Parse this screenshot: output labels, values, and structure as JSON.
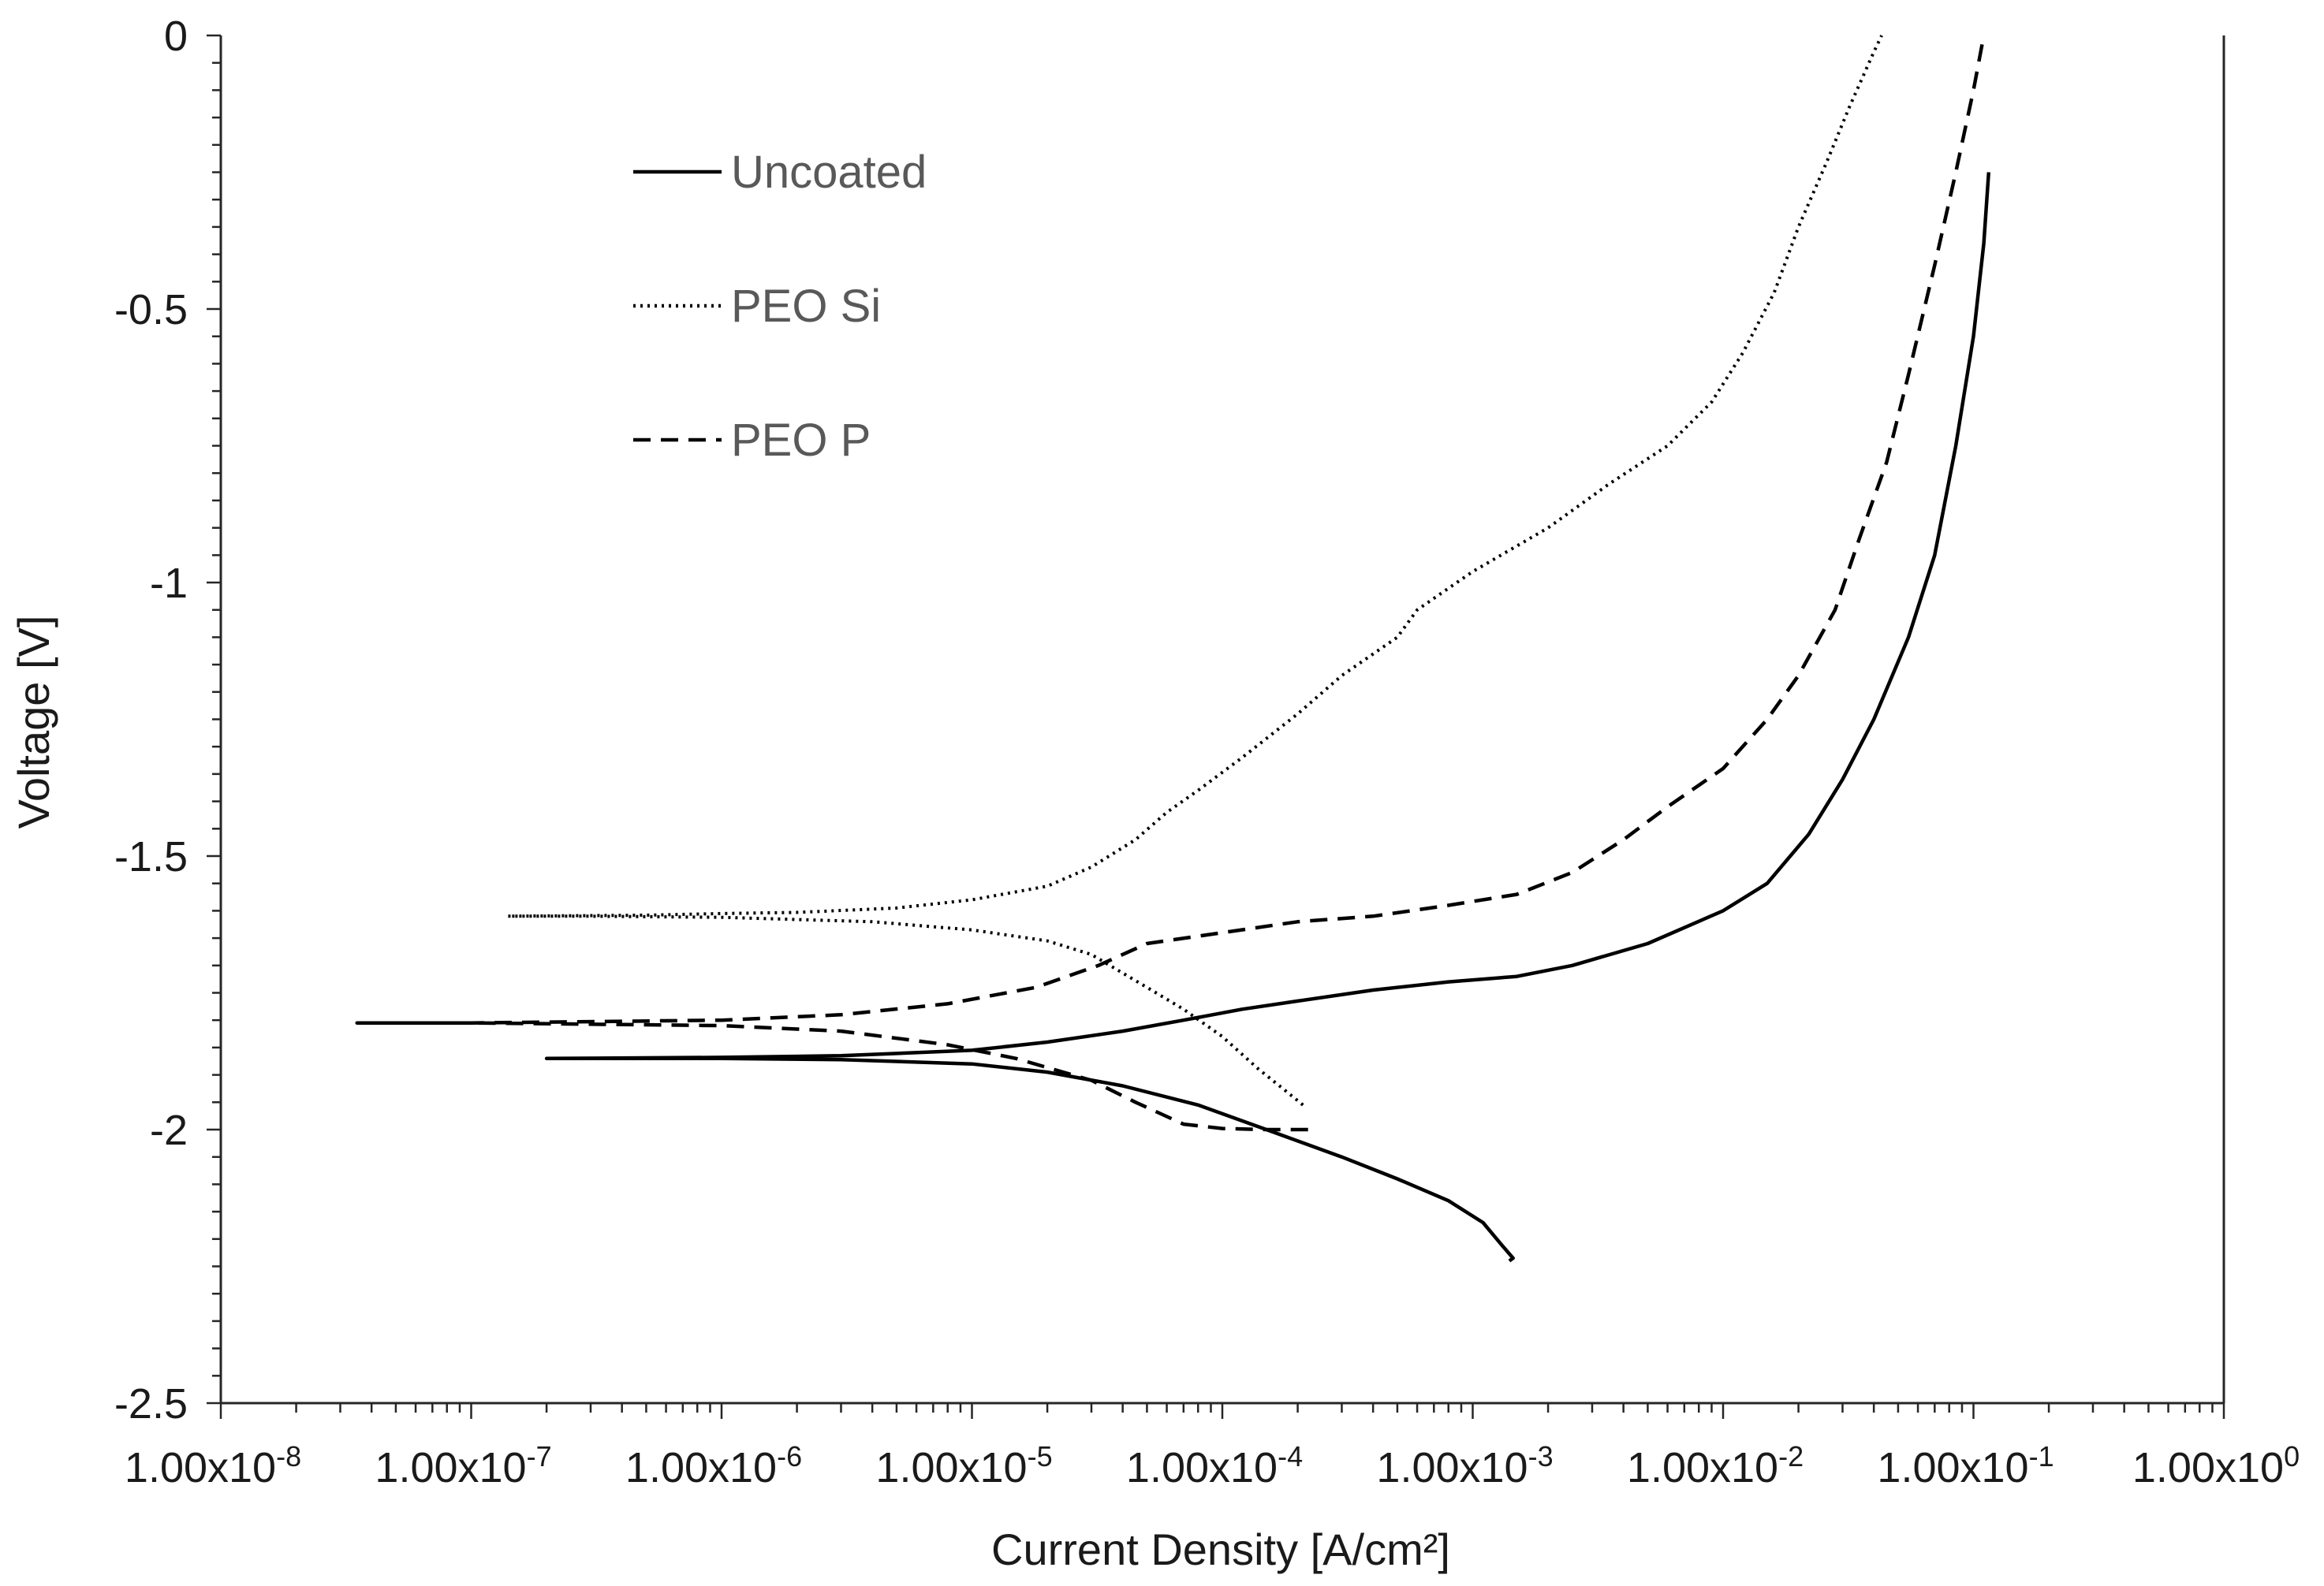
{
  "chart_data": {
    "type": "line",
    "title": "",
    "xlabel": "Current Density [A/cm²]",
    "ylabel": "Voltage [V]",
    "xscale": "log",
    "xlim": [
      1e-08,
      1
    ],
    "ylim": [
      -2.5,
      0
    ],
    "grid": false,
    "legend_position": "top-left",
    "x_ticks": [
      {
        "value": 1e-08,
        "mantissa": "1.00x10",
        "exp": "-8"
      },
      {
        "value": 1e-07,
        "mantissa": "1.00x10",
        "exp": "-7"
      },
      {
        "value": 1e-06,
        "mantissa": "1.00x10",
        "exp": "-6"
      },
      {
        "value": 1e-05,
        "mantissa": "1.00x10",
        "exp": "-5"
      },
      {
        "value": 0.0001,
        "mantissa": "1.00x10",
        "exp": "-4"
      },
      {
        "value": 0.001,
        "mantissa": "1.00x10",
        "exp": "-3"
      },
      {
        "value": 0.01,
        "mantissa": "1.00x10",
        "exp": "-2"
      },
      {
        "value": 0.1,
        "mantissa": "1.00x10",
        "exp": "-1"
      },
      {
        "value": 1,
        "mantissa": "1.00x10",
        "exp": "0"
      }
    ],
    "y_ticks": [
      {
        "value": 0,
        "label": "0"
      },
      {
        "value": -0.5,
        "label": "-0.5"
      },
      {
        "value": -1,
        "label": "-1"
      },
      {
        "value": -1.5,
        "label": "-1.5"
      },
      {
        "value": -2,
        "label": "-2"
      },
      {
        "value": -2.5,
        "label": "-2.5"
      }
    ],
    "series": [
      {
        "name": "Uncoated",
        "style": "solid",
        "color": "#000000",
        "points": [
          [
            0.0014,
            -2.24
          ],
          [
            0.00145,
            -2.235
          ],
          [
            0.0013,
            -2.21
          ],
          [
            0.0011,
            -2.17
          ],
          [
            0.0008,
            -2.13
          ],
          [
            0.0005,
            -2.09
          ],
          [
            0.0003,
            -2.05
          ],
          [
            0.00015,
            -2.0
          ],
          [
            8e-05,
            -1.955
          ],
          [
            4e-05,
            -1.92
          ],
          [
            2e-05,
            -1.895
          ],
          [
            1e-05,
            -1.88
          ],
          [
            3e-06,
            -1.872
          ],
          [
            1e-06,
            -1.87
          ],
          [
            3e-07,
            -1.87
          ],
          [
            2e-07,
            -1.87
          ],
          [
            1e-06,
            -1.868
          ],
          [
            3e-06,
            -1.865
          ],
          [
            1e-05,
            -1.855
          ],
          [
            2e-05,
            -1.84
          ],
          [
            4e-05,
            -1.82
          ],
          [
            7e-05,
            -1.8
          ],
          [
            0.00012,
            -1.78
          ],
          [
            0.0002,
            -1.765
          ],
          [
            0.0004,
            -1.745
          ],
          [
            0.0008,
            -1.73
          ],
          [
            0.0015,
            -1.72
          ],
          [
            0.0025,
            -1.7
          ],
          [
            0.005,
            -1.66
          ],
          [
            0.01,
            -1.6
          ],
          [
            0.015,
            -1.55
          ],
          [
            0.022,
            -1.46
          ],
          [
            0.03,
            -1.36
          ],
          [
            0.04,
            -1.25
          ],
          [
            0.055,
            -1.1
          ],
          [
            0.07,
            -0.95
          ],
          [
            0.085,
            -0.75
          ],
          [
            0.1,
            -0.55
          ],
          [
            0.11,
            -0.38
          ],
          [
            0.115,
            -0.25
          ]
        ]
      },
      {
        "name": "PEO Si",
        "style": "dotted",
        "color": "#000000",
        "points": [
          [
            0.00021,
            -1.955
          ],
          [
            0.00018,
            -1.93
          ],
          [
            0.00014,
            -1.89
          ],
          [
            0.0001,
            -1.83
          ],
          [
            7e-05,
            -1.78
          ],
          [
            5e-05,
            -1.74
          ],
          [
            3e-05,
            -1.68
          ],
          [
            2e-05,
            -1.655
          ],
          [
            1e-05,
            -1.635
          ],
          [
            4e-06,
            -1.62
          ],
          [
            1e-06,
            -1.612
          ],
          [
            3e-07,
            -1.61
          ],
          [
            1.4e-07,
            -1.61
          ],
          [
            5e-07,
            -1.608
          ],
          [
            1e-06,
            -1.605
          ],
          [
            2e-06,
            -1.603
          ],
          [
            5e-06,
            -1.595
          ],
          [
            1e-05,
            -1.58
          ],
          [
            2e-05,
            -1.555
          ],
          [
            3e-05,
            -1.52
          ],
          [
            4.5e-05,
            -1.47
          ],
          [
            6e-05,
            -1.42
          ],
          [
            8e-05,
            -1.38
          ],
          [
            0.00012,
            -1.32
          ],
          [
            0.0002,
            -1.24
          ],
          [
            0.0003,
            -1.17
          ],
          [
            0.0005,
            -1.1
          ],
          [
            0.0006,
            -1.05
          ],
          [
            0.001,
            -0.98
          ],
          [
            0.002,
            -0.9
          ],
          [
            0.0035,
            -0.82
          ],
          [
            0.006,
            -0.75
          ],
          [
            0.009,
            -0.67
          ],
          [
            0.012,
            -0.58
          ],
          [
            0.016,
            -0.47
          ],
          [
            0.02,
            -0.35
          ],
          [
            0.026,
            -0.23
          ],
          [
            0.032,
            -0.13
          ],
          [
            0.04,
            -0.03
          ],
          [
            0.043,
            0.0
          ]
        ]
      },
      {
        "name": "PEO P",
        "style": "dashed",
        "color": "#000000",
        "points": [
          [
            0.00022,
            -2.0
          ],
          [
            0.00015,
            -2.0
          ],
          [
            0.0001,
            -1.998
          ],
          [
            7e-05,
            -1.99
          ],
          [
            4.5e-05,
            -1.95
          ],
          [
            3e-05,
            -1.91
          ],
          [
            1.5e-05,
            -1.87
          ],
          [
            8e-06,
            -1.845
          ],
          [
            3e-06,
            -1.82
          ],
          [
            1e-06,
            -1.81
          ],
          [
            1e-07,
            -1.805
          ],
          [
            3.5e-08,
            -1.805
          ],
          [
            1e-07,
            -1.805
          ],
          [
            1e-06,
            -1.8
          ],
          [
            3e-06,
            -1.79
          ],
          [
            8e-06,
            -1.77
          ],
          [
            1.8e-05,
            -1.74
          ],
          [
            3.2e-05,
            -1.7
          ],
          [
            5e-05,
            -1.66
          ],
          [
            0.0001,
            -1.64
          ],
          [
            0.0002,
            -1.62
          ],
          [
            0.0004,
            -1.61
          ],
          [
            0.0008,
            -1.59
          ],
          [
            0.0015,
            -1.57
          ],
          [
            0.0025,
            -1.53
          ],
          [
            0.004,
            -1.47
          ],
          [
            0.006,
            -1.41
          ],
          [
            0.01,
            -1.34
          ],
          [
            0.015,
            -1.25
          ],
          [
            0.02,
            -1.17
          ],
          [
            0.028,
            -1.05
          ],
          [
            0.035,
            -0.92
          ],
          [
            0.045,
            -0.78
          ],
          [
            0.055,
            -0.62
          ],
          [
            0.07,
            -0.42
          ],
          [
            0.085,
            -0.25
          ],
          [
            0.1,
            -0.1
          ],
          [
            0.11,
            0.0
          ]
        ]
      }
    ]
  }
}
